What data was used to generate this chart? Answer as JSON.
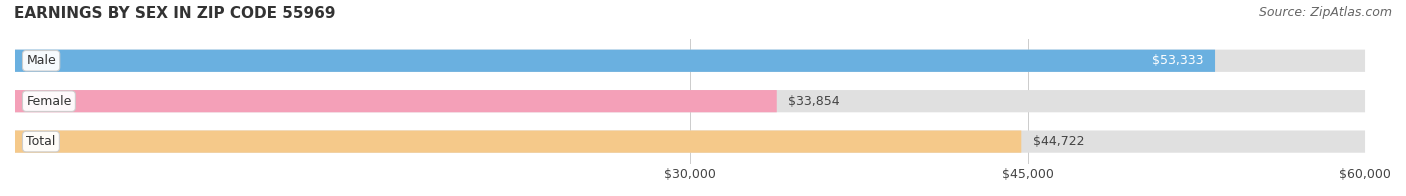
{
  "title": "EARNINGS BY SEX IN ZIP CODE 55969",
  "source": "Source: ZipAtlas.com",
  "categories": [
    "Male",
    "Female",
    "Total"
  ],
  "values": [
    53333,
    33854,
    44722
  ],
  "bar_colors": [
    "#6ab0e0",
    "#f4a0b8",
    "#f5c98a"
  ],
  "label_colors": [
    "#ffffff",
    "#555555",
    "#555555"
  ],
  "label_inside": [
    true,
    false,
    false
  ],
  "bar_bg_color": "#e8e8e8",
  "xmin": 0,
  "xmax": 60000,
  "xticks": [
    30000,
    45000,
    60000
  ],
  "xtick_labels": [
    "$30,000",
    "$45,000",
    "$60,000"
  ],
  "value_labels": [
    "$53,333",
    "$33,854",
    "$44,722"
  ],
  "title_fontsize": 11,
  "source_fontsize": 9,
  "tick_fontsize": 9,
  "bar_label_fontsize": 9,
  "category_fontsize": 9,
  "background_color": "#ffffff",
  "bar_height": 0.55,
  "pill_color": "#f0f0f0",
  "pill_border_color": "#cccccc"
}
